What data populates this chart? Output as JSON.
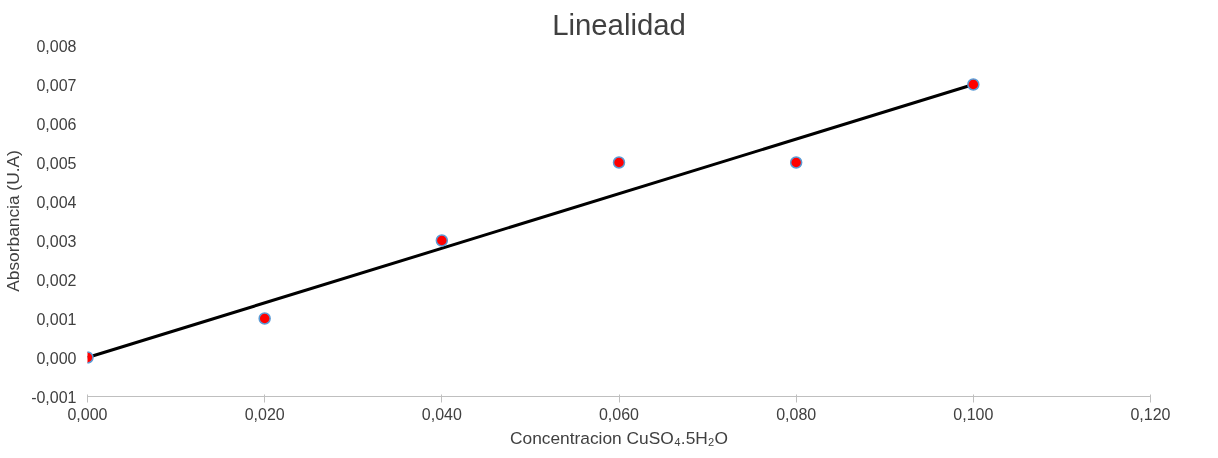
{
  "chart_data": {
    "type": "scatter",
    "title": "Linealidad",
    "xlabel": "Concentracion CuSO₄.5H₂O",
    "ylabel": "Absorbancia (U.A)",
    "x": [
      0,
      0.02,
      0.04,
      0.06,
      0.08,
      0.1
    ],
    "series": [
      {
        "type": "line",
        "color": "#000000",
        "x": [
          0,
          0.1
        ],
        "values": [
          0,
          0.007
        ],
        "line_style": "solid"
      },
      {
        "color": "#ff0000",
        "values": [
          0,
          0.001,
          0.003,
          0.005,
          0.005,
          0.007
        ],
        "marker": "circle"
      }
    ],
    "xlim": [
      0,
      0.12
    ],
    "ylim": [
      -0.001,
      0.008
    ],
    "xticks": [
      {
        "value": 0,
        "label": "0,000"
      },
      {
        "value": 0.02,
        "label": "0,020"
      },
      {
        "value": 0.04,
        "label": "0,040"
      },
      {
        "value": 0.06,
        "label": "0,060"
      },
      {
        "value": 0.08,
        "label": "0,080"
      },
      {
        "value": 0.1,
        "label": "0,100"
      },
      {
        "value": 0.12,
        "label": "0,120"
      }
    ],
    "yticks": [
      {
        "value": -0.001,
        "label": "-0,001"
      },
      {
        "value": 0,
        "label": "0,000"
      },
      {
        "value": 0.001,
        "label": "0,001"
      },
      {
        "value": 0.002,
        "label": "0,002"
      },
      {
        "value": 0.003,
        "label": "0,003"
      },
      {
        "value": 0.004,
        "label": "0,004"
      },
      {
        "value": 0.005,
        "label": "0,005"
      },
      {
        "value": 0.006,
        "label": "0,006"
      },
      {
        "value": 0.007,
        "label": "0,007"
      },
      {
        "value": 0.008,
        "label": "0,008"
      }
    ],
    "grid": false
  }
}
